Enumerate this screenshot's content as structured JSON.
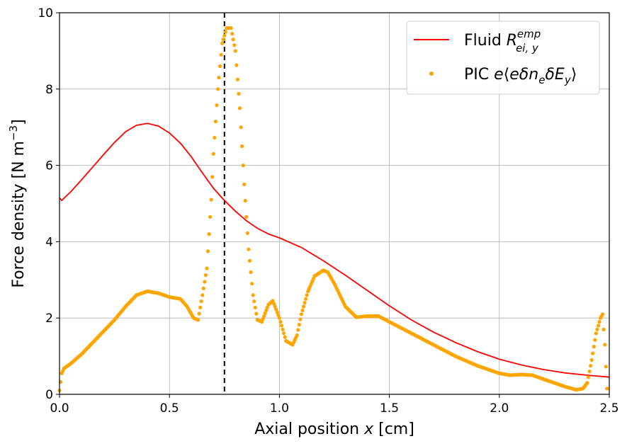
{
  "chart_data": {
    "type": "line",
    "xlabel": "Axial position x [cm]",
    "ylabel": "Force density [N m⁻³]",
    "xlim": [
      0,
      2.5
    ],
    "ylim": [
      0,
      10
    ],
    "xticks": [
      0.0,
      0.5,
      1.0,
      1.5,
      2.0,
      2.5
    ],
    "xtick_labels": [
      "0.0",
      "0.5",
      "1.0",
      "1.5",
      "2.0",
      "2.5"
    ],
    "yticks": [
      0,
      2,
      4,
      6,
      8,
      10
    ],
    "ytick_labels": [
      "0",
      "2",
      "4",
      "6",
      "8",
      "10"
    ],
    "grid": true,
    "legend_position": "top-right",
    "vline": {
      "x": 0.75,
      "style": "dashed",
      "color": "#000000"
    },
    "series": [
      {
        "name": "Fluid R_ei,y^emp",
        "kind": "line",
        "color": "#ff0000",
        "x": [
          0.0,
          0.01,
          0.05,
          0.1,
          0.15,
          0.2,
          0.25,
          0.3,
          0.35,
          0.4,
          0.45,
          0.5,
          0.55,
          0.6,
          0.65,
          0.7,
          0.75,
          0.8,
          0.85,
          0.9,
          0.95,
          1.0,
          1.1,
          1.2,
          1.3,
          1.4,
          1.5,
          1.6,
          1.7,
          1.8,
          1.9,
          2.0,
          2.1,
          2.2,
          2.3,
          2.4,
          2.5
        ],
        "y": [
          5.15,
          5.08,
          5.3,
          5.62,
          5.95,
          6.28,
          6.6,
          6.88,
          7.05,
          7.1,
          7.03,
          6.85,
          6.58,
          6.22,
          5.8,
          5.4,
          5.08,
          4.8,
          4.55,
          4.35,
          4.2,
          4.1,
          3.85,
          3.5,
          3.12,
          2.72,
          2.32,
          1.95,
          1.63,
          1.36,
          1.12,
          0.92,
          0.77,
          0.65,
          0.56,
          0.5,
          0.45
        ]
      },
      {
        "name": "PIC e⟨eδn_eδE_y⟩",
        "kind": "scatter",
        "color": "#ffa500",
        "x": [
          0.0,
          0.01,
          0.02,
          0.05,
          0.1,
          0.15,
          0.2,
          0.25,
          0.3,
          0.35,
          0.4,
          0.45,
          0.5,
          0.55,
          0.58,
          0.61,
          0.63,
          0.65,
          0.67,
          0.69,
          0.7,
          0.72,
          0.74,
          0.76,
          0.78,
          0.8,
          0.82,
          0.84,
          0.86,
          0.88,
          0.9,
          0.92,
          0.95,
          0.97,
          1.0,
          1.03,
          1.06,
          1.08,
          1.1,
          1.13,
          1.16,
          1.2,
          1.22,
          1.25,
          1.3,
          1.35,
          1.4,
          1.45,
          1.5,
          1.6,
          1.7,
          1.8,
          1.9,
          2.0,
          2.05,
          2.1,
          2.15,
          2.2,
          2.3,
          2.35,
          2.38,
          2.4,
          2.42,
          2.44,
          2.46,
          2.47,
          2.48,
          2.49
        ],
        "y": [
          0.1,
          0.55,
          0.68,
          0.8,
          1.05,
          1.35,
          1.65,
          1.95,
          2.3,
          2.6,
          2.7,
          2.65,
          2.55,
          2.5,
          2.3,
          2.0,
          1.95,
          2.6,
          3.3,
          5.1,
          6.3,
          8.0,
          9.2,
          9.6,
          9.6,
          9.0,
          7.5,
          5.5,
          3.8,
          2.6,
          1.95,
          1.9,
          2.35,
          2.45,
          2.0,
          1.4,
          1.3,
          1.55,
          2.1,
          2.7,
          3.1,
          3.25,
          3.2,
          2.9,
          2.3,
          2.02,
          2.05,
          2.05,
          1.9,
          1.6,
          1.3,
          1.0,
          0.75,
          0.55,
          0.5,
          0.52,
          0.5,
          0.4,
          0.2,
          0.12,
          0.15,
          0.3,
          0.9,
          1.6,
          2.0,
          2.1,
          1.3,
          0.15
        ]
      }
    ]
  }
}
